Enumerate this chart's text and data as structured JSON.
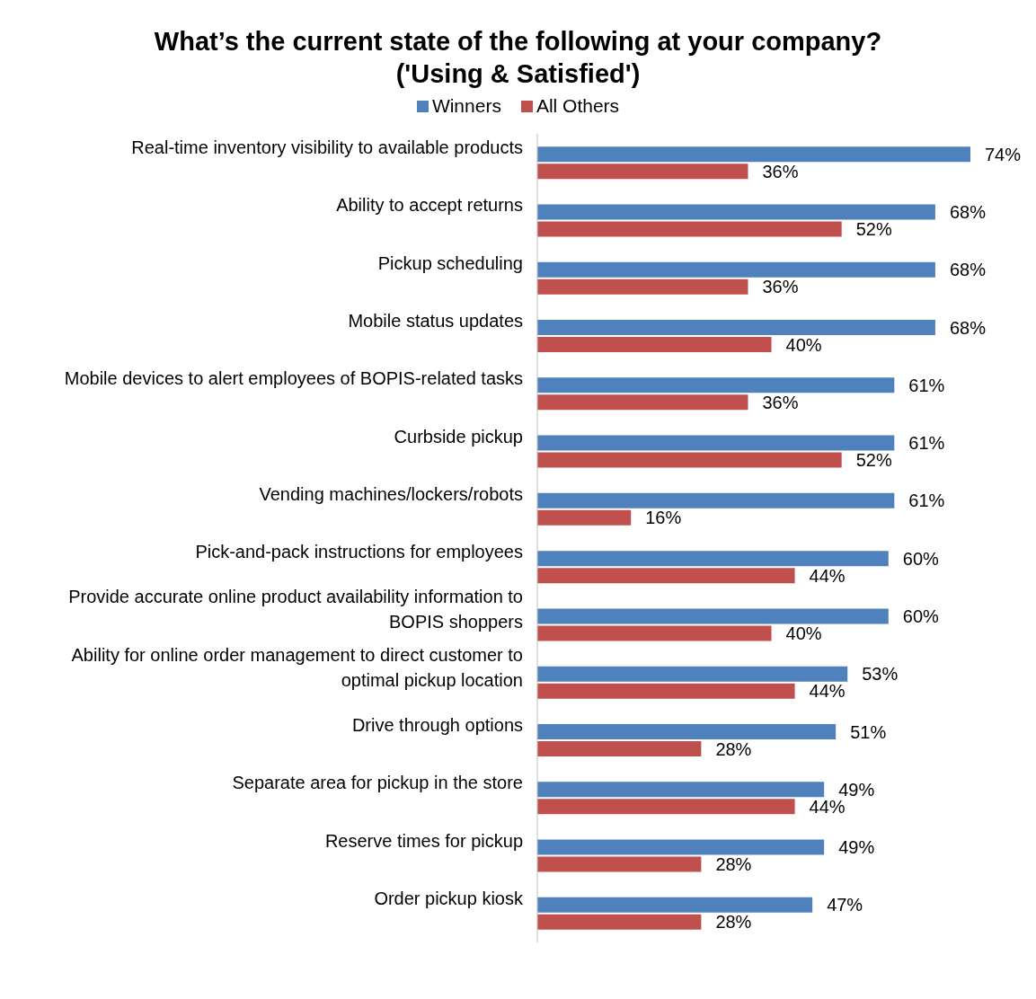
{
  "chart_data": {
    "type": "bar",
    "orientation": "horizontal",
    "title": "What’s the current state of the following at your company?\n('Using & Satisfied')",
    "categories": [
      "Real-time inventory visibility to available products",
      "Ability to accept returns",
      "Pickup scheduling",
      "Mobile status updates",
      "Mobile devices to alert employees of BOPIS-related tasks",
      "Curbside pickup",
      "Vending machines/lockers/robots",
      "Pick-and-pack instructions for employees",
      "Provide accurate online product availability information to BOPIS shoppers",
      "Ability for online order management to direct customer to optimal pickup location",
      "Drive through options",
      "Separate area for pickup in the store",
      "Reserve times for pickup",
      "Order pickup kiosk"
    ],
    "series": [
      {
        "name": "Winners",
        "color": "#4f81bd",
        "values": [
          74,
          68,
          68,
          68,
          61,
          61,
          61,
          60,
          60,
          53,
          51,
          49,
          49,
          47
        ],
        "value_labels": [
          "74%",
          "68%",
          "68%",
          "68%",
          "61%",
          "61%",
          "61%",
          "60%",
          "60%",
          "53%",
          "51%",
          "49%",
          "49%",
          "47%"
        ]
      },
      {
        "name": "All Others",
        "color": "#c0504d",
        "values": [
          36,
          52,
          36,
          40,
          36,
          52,
          16,
          44,
          40,
          44,
          28,
          44,
          28,
          28
        ],
        "value_labels": [
          "36%",
          "52%",
          "36%",
          "40%",
          "36%",
          "52%",
          "16%",
          "44%",
          "40%",
          "44%",
          "28%",
          "44%",
          "28%",
          "28%"
        ]
      }
    ],
    "legend": "top",
    "grid": false
  }
}
